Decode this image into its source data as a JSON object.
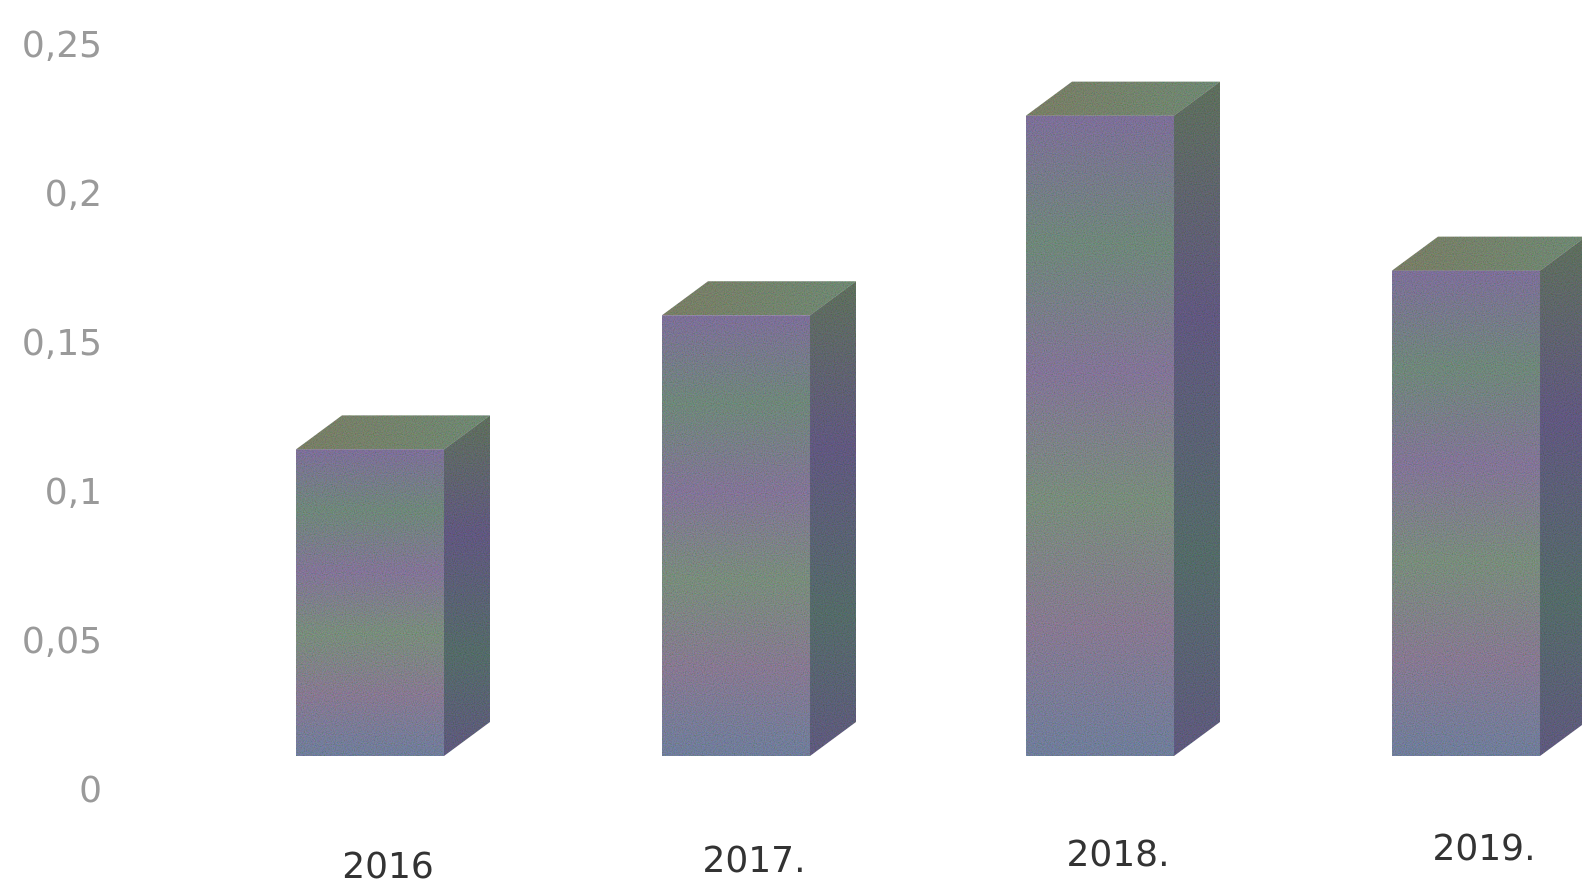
{
  "chart_data": {
    "type": "bar",
    "three_d": true,
    "categories": [
      "2016",
      "2017.",
      "2018.",
      "2019."
    ],
    "values": [
      0.12,
      0.165,
      0.232,
      0.18
    ],
    "y_ticks": [
      "0",
      "0,05",
      "0,1",
      "0,15",
      "0,2",
      "0,25"
    ],
    "ylim": [
      0,
      0.25
    ],
    "grid": false,
    "legend": "none",
    "colors": {
      "front_a": "#8c7fb0",
      "front_b": "#7d9a8a",
      "front_c": "#9a8aa8",
      "side": "#6f6690",
      "top": "#8a9a78"
    }
  }
}
